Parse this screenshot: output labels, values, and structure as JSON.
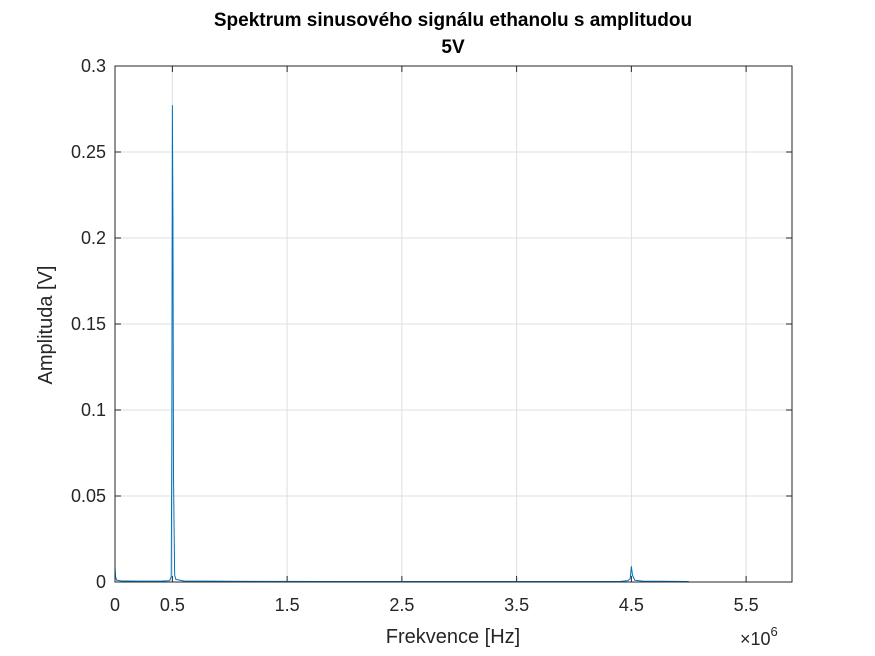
{
  "chart_data": {
    "type": "line",
    "title_line1": "Spektrum sinusového signálu ethanolu s amplitudou",
    "title_line2": "5V",
    "xlabel": "Frekvence [Hz]",
    "ylabel": "Amplituda [V]",
    "x_exponent_times": "×10",
    "x_exponent_power": "6",
    "xlim": [
      0,
      5900000
    ],
    "ylim": [
      0,
      0.3
    ],
    "x_ticks": [
      0,
      500000,
      1500000,
      2500000,
      3500000,
      4500000,
      5500000
    ],
    "x_tick_labels": [
      "0",
      "0.5",
      "1.5",
      "2.5",
      "3.5",
      "4.5",
      "5.5"
    ],
    "y_ticks": [
      0,
      0.05,
      0.1,
      0.15,
      0.2,
      0.25,
      0.3
    ],
    "y_tick_labels": [
      "0",
      "0.05",
      "0.1",
      "0.15",
      "0.2",
      "0.25",
      "0.3"
    ],
    "grid": true,
    "line_color": "#0072BD",
    "series": [
      {
        "x": [
          0,
          5000,
          15000,
          60000,
          200000,
          400000,
          470000,
          480000,
          490000,
          495000,
          500000,
          505000,
          510000,
          520000,
          530000,
          600000,
          1000000,
          2000000,
          3000000,
          4000000,
          4400000,
          4470000,
          4490000,
          4500000,
          4510000,
          4530000,
          4600000,
          5000000
        ],
        "y": [
          0.009,
          0.003,
          0.001,
          0.0006,
          0.0005,
          0.0005,
          0.0007,
          0.0012,
          0.003,
          0.08,
          0.277,
          0.21,
          0.06,
          0.004,
          0.0015,
          0.0006,
          0.0004,
          0.0003,
          0.0003,
          0.0003,
          0.0003,
          0.0008,
          0.002,
          0.009,
          0.004,
          0.001,
          0.0005,
          0.0003
        ]
      }
    ]
  }
}
